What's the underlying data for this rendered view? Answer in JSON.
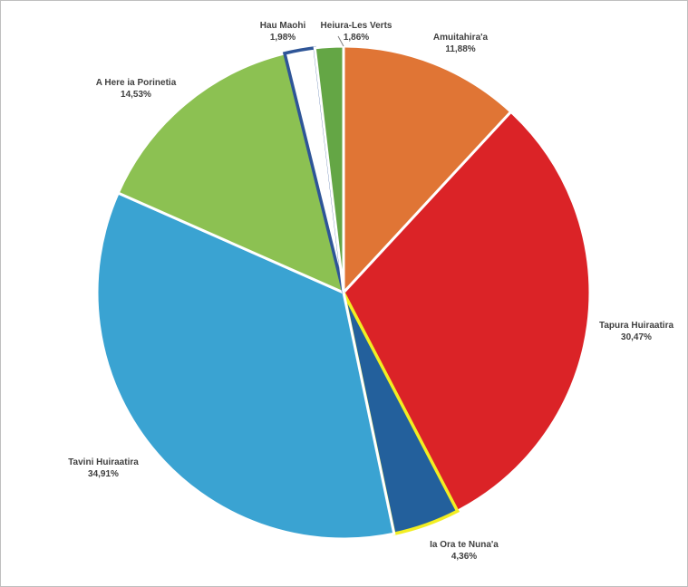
{
  "chart_data": {
    "type": "pie",
    "title": "",
    "slices": [
      {
        "name": "Amuitahira'a",
        "value_label": "11,88%",
        "value": 11.88,
        "color": "#E07535",
        "stroke": "#ffffff"
      },
      {
        "name": "Tapura Huiraatira",
        "value_label": "30,47%",
        "value": 30.47,
        "color": "#DB2327",
        "stroke": "#ffffff"
      },
      {
        "name": "Ia Ora te Nuna'a",
        "value_label": "4,36%",
        "value": 4.36,
        "color": "#23609C",
        "stroke": "#F2EE22"
      },
      {
        "name": "Tavini Huiraatira",
        "value_label": "34,91%",
        "value": 34.91,
        "color": "#3AA3D2",
        "stroke": "#ffffff"
      },
      {
        "name": "A Here ia Porinetia",
        "value_label": "14,53%",
        "value": 14.53,
        "color": "#8CC152",
        "stroke": "#ffffff"
      },
      {
        "name": "Hau Maohi",
        "value_label": "1,98%",
        "value": 1.98,
        "color": "#FFFFFF",
        "stroke": "#2E5597"
      },
      {
        "name": "Heiura-Les Verts",
        "value_label": "1,86%",
        "value": 1.86,
        "color": "#64A645",
        "stroke": "#ffffff"
      }
    ],
    "legend": "none",
    "data_labels": "name and percentage outside slices"
  }
}
